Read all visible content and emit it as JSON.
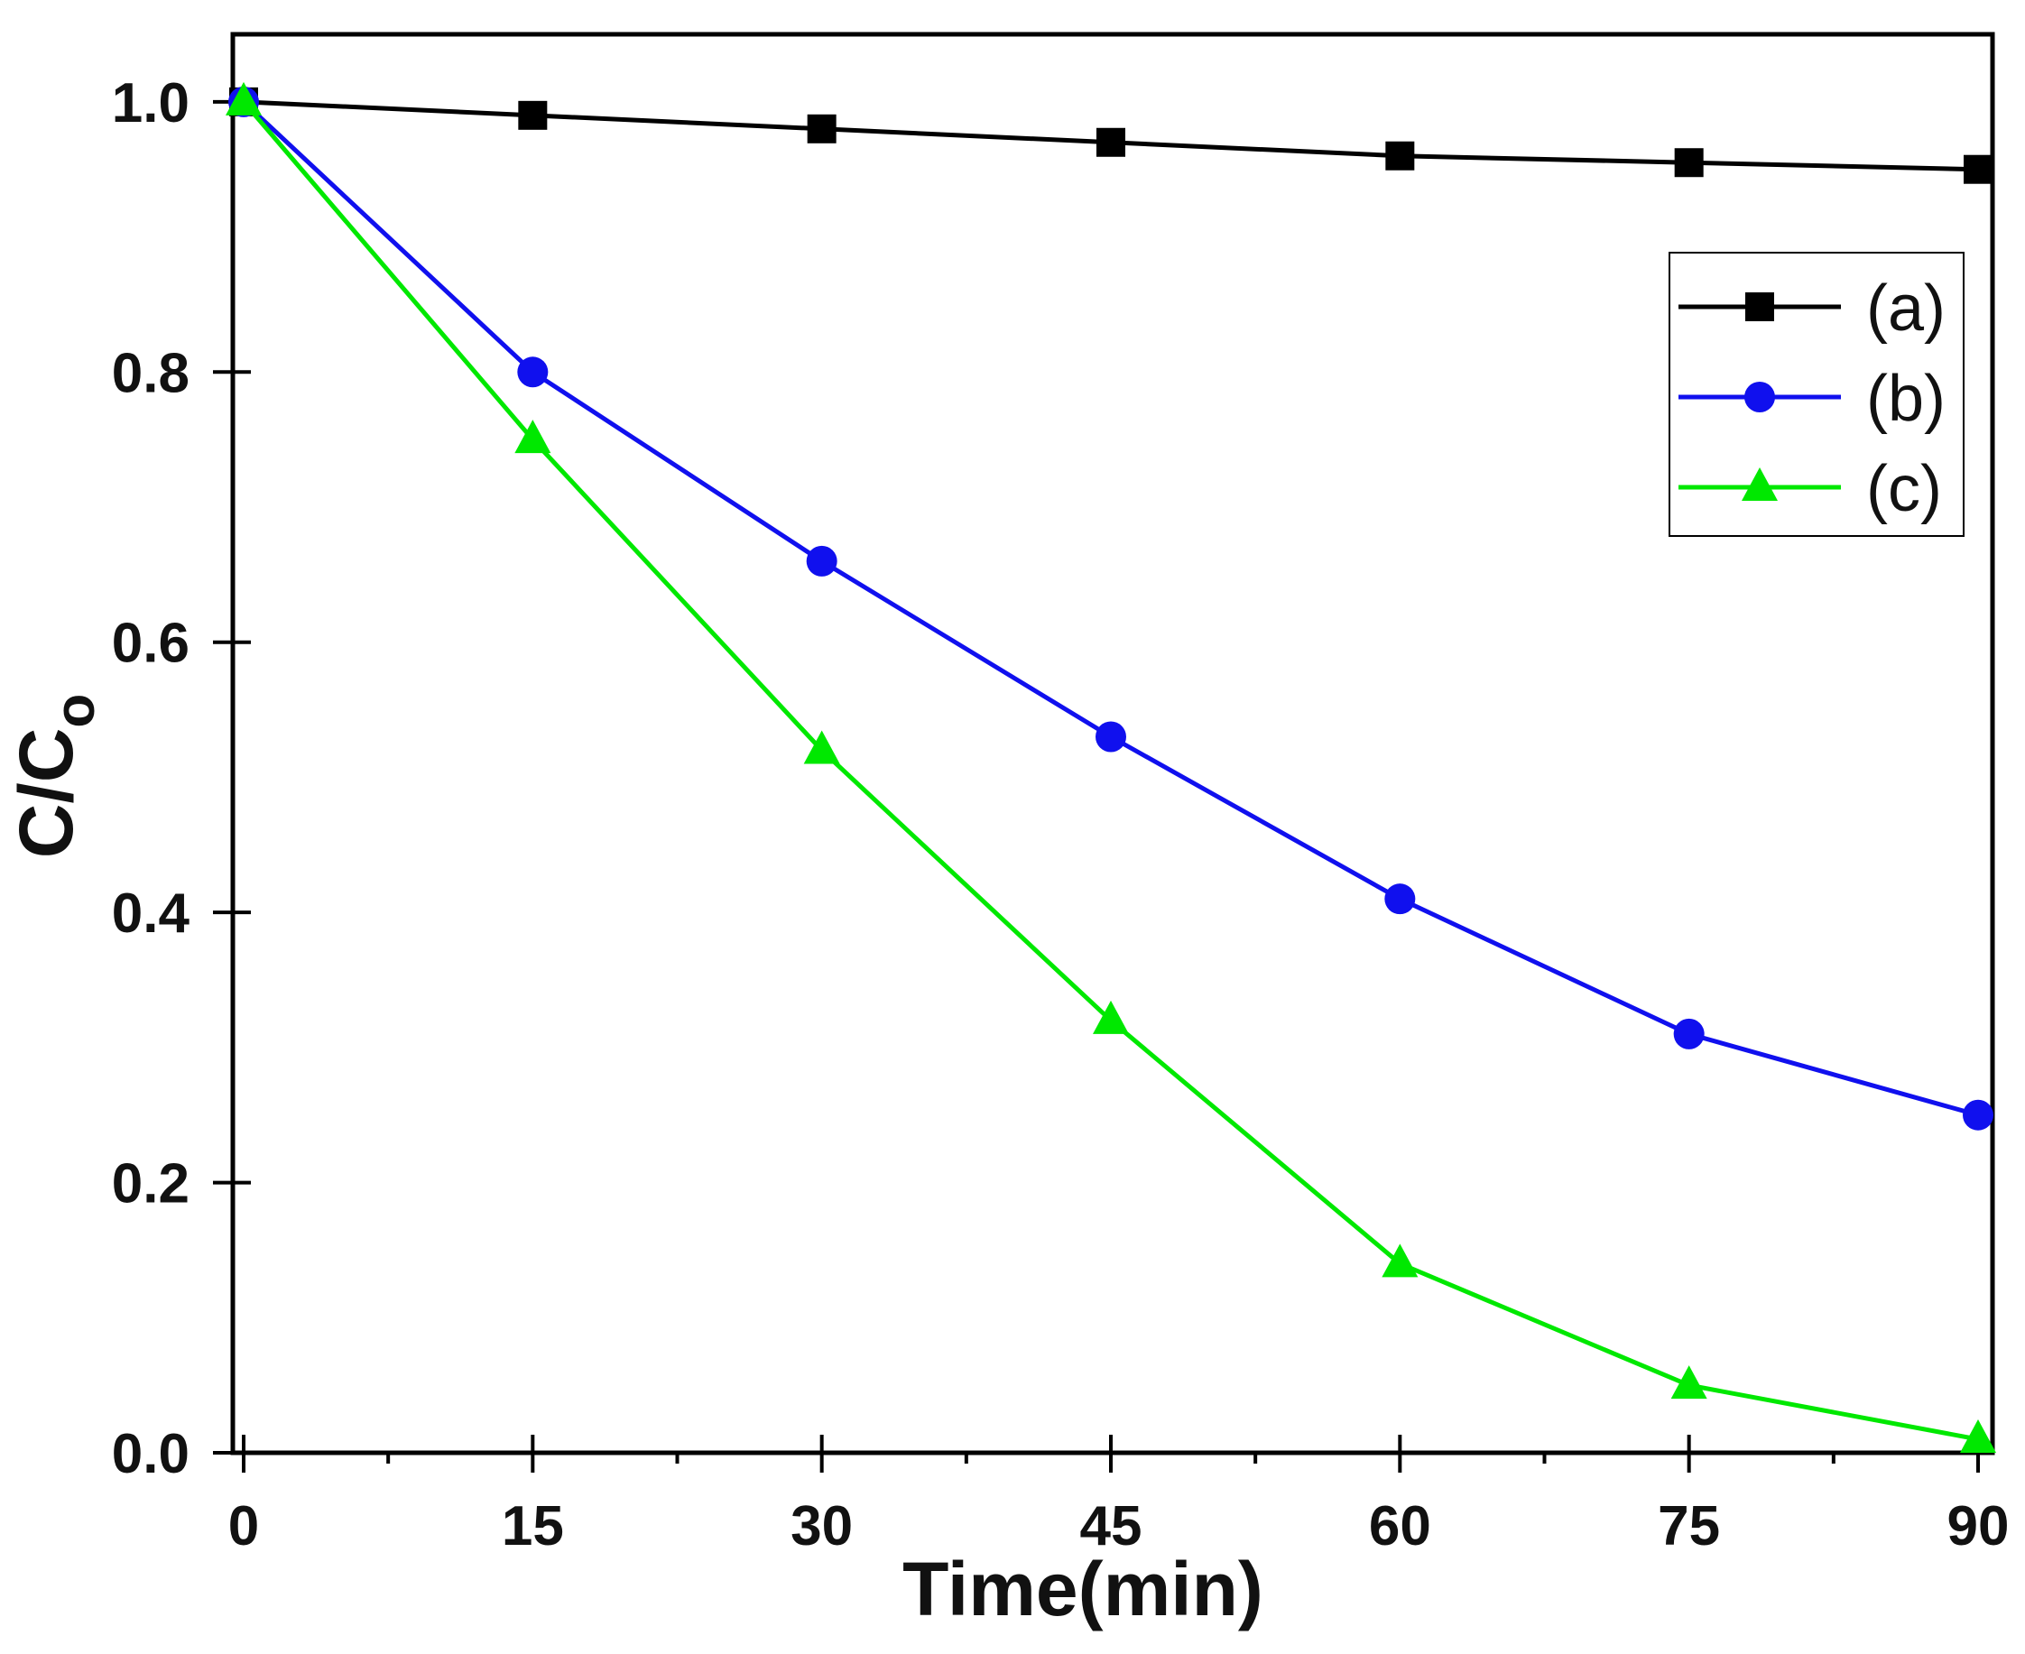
{
  "chart_data": {
    "type": "line",
    "title": "",
    "xlabel": "Time(min)",
    "ylabel": {
      "main": "C/C",
      "sub": "o"
    },
    "x": [
      0,
      15,
      30,
      45,
      60,
      75,
      90
    ],
    "xlim": [
      0,
      90
    ],
    "ylim": [
      0.0,
      1.05
    ],
    "x_ticks": [
      0,
      15,
      30,
      45,
      60,
      75,
      90
    ],
    "x_tick_labels": [
      "0",
      "15",
      "30",
      "45",
      "60",
      "75",
      "90"
    ],
    "y_ticks": [
      0.0,
      0.2,
      0.4,
      0.6,
      0.8,
      1.0
    ],
    "y_tick_labels": [
      "0.0",
      "0.2",
      "0.4",
      "0.6",
      "0.8",
      "1.0"
    ],
    "grid": false,
    "legend_position": "top-right",
    "series": [
      {
        "name": "(a)",
        "marker": "square",
        "color": "#000000",
        "values": [
          1.0,
          0.99,
          0.98,
          0.97,
          0.96,
          0.955,
          0.95
        ]
      },
      {
        "name": "(b)",
        "marker": "circle",
        "color": "#1010ee",
        "values": [
          1.0,
          0.8,
          0.66,
          0.53,
          0.41,
          0.31,
          0.25
        ]
      },
      {
        "name": "(c)",
        "marker": "triangle",
        "color": "#00e800",
        "values": [
          1.0,
          0.75,
          0.52,
          0.32,
          0.14,
          0.05,
          0.01
        ]
      }
    ]
  }
}
